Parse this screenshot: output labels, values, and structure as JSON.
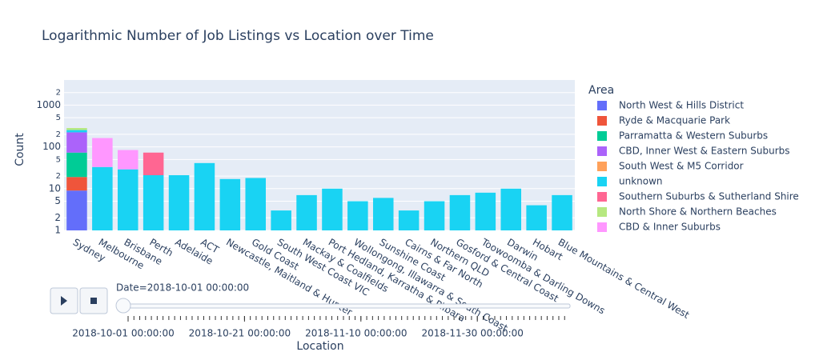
{
  "chart_data": {
    "type": "bar",
    "title": "Logarithmic Number of Job Listings vs Location over Time",
    "x_label": "Location",
    "y_label": "Count",
    "legend_title": "Area",
    "log_y": true,
    "grid": true,
    "stacked": true,
    "legend_position": "right",
    "ylim": [
      1,
      4000
    ],
    "yticks": [
      1,
      2,
      5,
      10,
      {
        "value": 20,
        "label": "2"
      },
      {
        "value": 50,
        "label": "5"
      },
      100,
      {
        "value": 200,
        "label": "2"
      },
      {
        "value": 500,
        "label": "5"
      },
      1000,
      {
        "value": 2000,
        "label": "2"
      }
    ],
    "categories": [
      "Sydney",
      "Melbourne",
      "Brisbane",
      "Perth",
      "Adelaide",
      "ACT",
      "Newcastle, Maitland & Hunter",
      "Gold Coast",
      "South West Coast VIC",
      "Mackay & Coalfields",
      "Port Hedland, Karratha & Pilbara",
      "Wollongong, Illawarra & South Coast",
      "Sunshine Coast",
      "Cairns & Far North",
      "Northern QLD",
      "Gosford & Central Coast",
      "Toowoomba & Darling Downs",
      "Darwin",
      "Hobart",
      "Blue Mountains & Central West"
    ],
    "series": [
      {
        "name": "North West & Hills District",
        "color": "#636efa",
        "values": [
          9,
          0,
          0,
          0,
          0,
          0,
          0,
          0,
          0,
          0,
          0,
          0,
          0,
          0,
          0,
          0,
          0,
          0,
          0,
          0
        ]
      },
      {
        "name": "Ryde & Macquarie Park",
        "color": "#EF553B",
        "values": [
          10,
          0,
          0,
          0,
          0,
          0,
          0,
          0,
          0,
          0,
          0,
          0,
          0,
          0,
          0,
          0,
          0,
          0,
          0,
          0
        ]
      },
      {
        "name": "Parramatta & Western Suburbs",
        "color": "#00cc96",
        "values": [
          54,
          0,
          0,
          0,
          0,
          0,
          0,
          0,
          0,
          0,
          0,
          0,
          0,
          0,
          0,
          0,
          0,
          0,
          0,
          0
        ]
      },
      {
        "name": "CBD, Inner West & Eastern Suburbs",
        "color": "#ab63fa",
        "values": [
          150,
          0,
          0,
          0,
          0,
          0,
          0,
          0,
          0,
          0,
          0,
          0,
          0,
          0,
          0,
          0,
          0,
          0,
          0,
          0
        ]
      },
      {
        "name": "South West & M5 Corridor",
        "color": "#FFA15A",
        "values": [
          0,
          0,
          0,
          0,
          0,
          0,
          0,
          0,
          0,
          0,
          0,
          0,
          0,
          0,
          0,
          0,
          0,
          0,
          0,
          0
        ]
      },
      {
        "name": "unknown",
        "color": "#19d3f3",
        "values": [
          30,
          33,
          29,
          21,
          21,
          41,
          17,
          18,
          3,
          7,
          10,
          5,
          6,
          3,
          5,
          7,
          8,
          10,
          4,
          7
        ]
      },
      {
        "name": "Southern Suburbs & Sutherland Shire",
        "color": "#FF6692",
        "values": [
          0,
          0,
          0,
          52,
          0,
          0,
          0,
          0,
          0,
          0,
          0,
          0,
          0,
          0,
          0,
          0,
          0,
          0,
          0,
          0
        ]
      },
      {
        "name": "North Shore & Northern Beaches",
        "color": "#B6E880",
        "values": [
          30,
          0,
          0,
          0,
          0,
          0,
          0,
          0,
          0,
          0,
          0,
          0,
          0,
          0,
          0,
          0,
          0,
          0,
          0,
          0
        ]
      },
      {
        "name": "CBD & Inner Suburbs",
        "color": "#FF97FF",
        "values": [
          0,
          130,
          55,
          0,
          0,
          0,
          0,
          0,
          0,
          0,
          0,
          0,
          0,
          0,
          0,
          0,
          0,
          0,
          0,
          0
        ]
      }
    ],
    "slider": {
      "current_label": "Date=2018-10-01 00:00:00",
      "tick_labels": [
        "2018-10-01 00:00:00",
        "2018-10-21 00:00:00",
        "2018-11-10 00:00:00",
        "2018-11-30 00:00:00"
      ]
    }
  }
}
